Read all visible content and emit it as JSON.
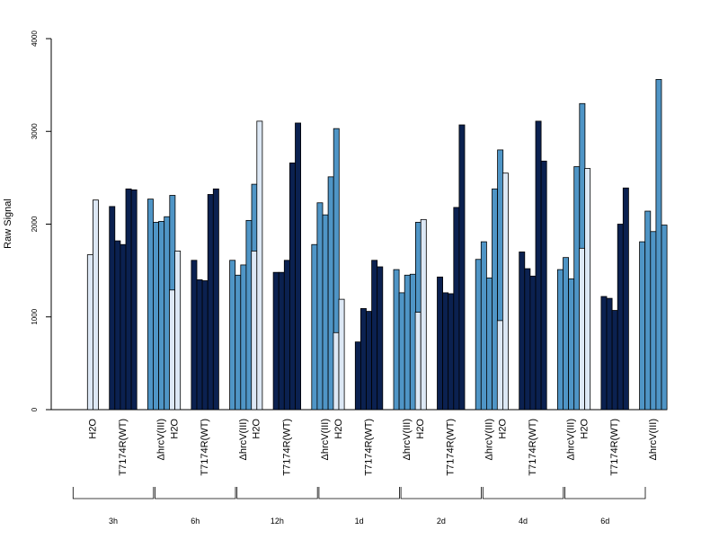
{
  "chart_data": {
    "type": "bar",
    "title": "",
    "xlabel": "",
    "ylabel": "Raw Signal",
    "ylim": [
      0,
      4000
    ],
    "yticks": [
      0,
      1000,
      2000,
      3000,
      4000
    ],
    "grid": false,
    "legend": "none",
    "groups": [
      "3h",
      "6h",
      "12h",
      "1d",
      "2d",
      "4d",
      "6d"
    ],
    "conditions": [
      "H2O",
      "T7174R(WT)",
      "ΔhrcV(III)"
    ],
    "condition_colors": [
      "#dde8f5",
      "#0b2150",
      "#4f95c6"
    ],
    "values": [
      [
        [
          1670,
          2260
        ],
        [
          2190,
          1820,
          1780,
          2380,
          2370
        ],
        [
          2270,
          2020,
          2030,
          2080,
          2310
        ]
      ],
      [
        [
          1290,
          1710
        ],
        [
          1610,
          1400,
          1390,
          2320,
          2380
        ],
        [
          1610,
          1450,
          1560,
          2040,
          2430
        ]
      ],
      [
        [
          1710,
          3110
        ],
        [
          1480,
          1480,
          1610,
          2660,
          3090
        ],
        [
          1780,
          2230,
          2100,
          2510,
          3030
        ]
      ],
      [
        [
          830,
          1190
        ],
        [
          730,
          1090,
          1060,
          1610,
          1540
        ],
        [
          1510,
          1260,
          1450,
          1460,
          2020
        ]
      ],
      [
        [
          1050,
          2050
        ],
        [
          1430,
          1260,
          1250,
          2180,
          3070
        ],
        [
          1620,
          1810,
          1420,
          2380,
          2800
        ]
      ],
      [
        [
          960,
          2550
        ],
        [
          1700,
          1520,
          1440,
          3110,
          2680
        ],
        [
          1510,
          1640,
          1410,
          2620,
          3300
        ]
      ],
      [
        [
          1740,
          2600
        ],
        [
          1220,
          1200,
          1070,
          2000,
          2390
        ],
        [
          1810,
          2140,
          1920,
          3560,
          1990
        ]
      ]
    ]
  }
}
